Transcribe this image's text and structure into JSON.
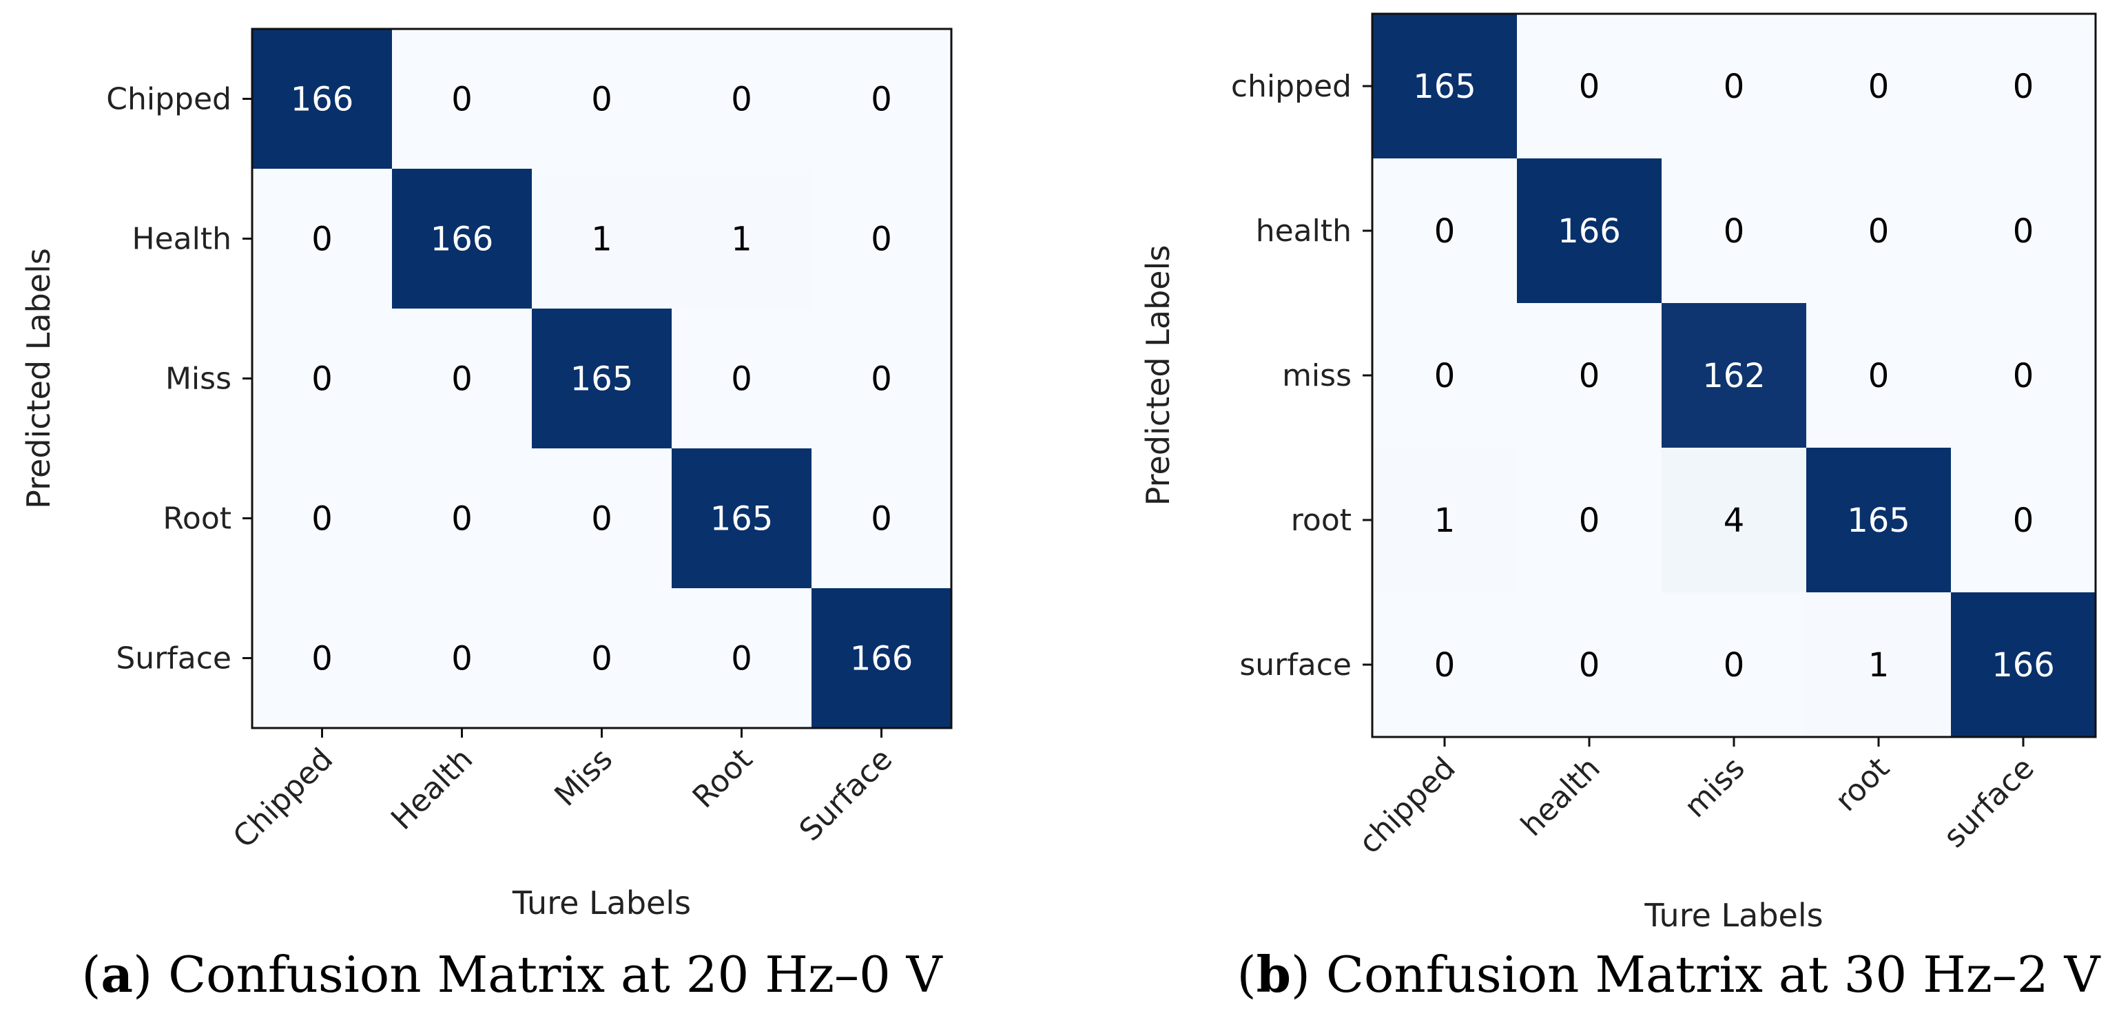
{
  "chart_data": [
    {
      "type": "heatmap",
      "panel": "a",
      "caption_letter": "a",
      "caption_text": "Confusion Matrix at 20 Hz–0 V",
      "xlabel": "Ture Labels",
      "ylabel": "Predicted Labels",
      "x_categories": [
        "Chipped",
        "Health",
        "Miss",
        "Root",
        "Surface"
      ],
      "y_categories": [
        "Chipped",
        "Health",
        "Miss",
        "Root",
        "Surface"
      ],
      "values": [
        [
          166,
          0,
          0,
          0,
          0
        ],
        [
          0,
          166,
          1,
          1,
          0
        ],
        [
          0,
          0,
          165,
          0,
          0
        ],
        [
          0,
          0,
          0,
          165,
          0
        ],
        [
          0,
          0,
          0,
          0,
          166
        ]
      ],
      "colormap": "Blues",
      "vmax": 166
    },
    {
      "type": "heatmap",
      "panel": "b",
      "caption_letter": "b",
      "caption_text": "Confusion Matrix at 30 Hz–2 V",
      "xlabel": "Ture Labels",
      "ylabel": "Predicted Labels",
      "x_categories": [
        "chipped",
        "health",
        "miss",
        "root",
        "surface"
      ],
      "y_categories": [
        "chipped",
        "health",
        "miss",
        "root",
        "surface"
      ],
      "values": [
        [
          165,
          0,
          0,
          0,
          0
        ],
        [
          0,
          166,
          0,
          0,
          0
        ],
        [
          0,
          0,
          162,
          0,
          0
        ],
        [
          1,
          0,
          4,
          165,
          0
        ],
        [
          0,
          0,
          0,
          1,
          166
        ]
      ],
      "colormap": "Blues",
      "vmax": 166
    }
  ],
  "colors": {
    "low": "#f7fbff",
    "high": "#08306b",
    "text_dark": "#000000",
    "text_light": "#ffffff"
  }
}
